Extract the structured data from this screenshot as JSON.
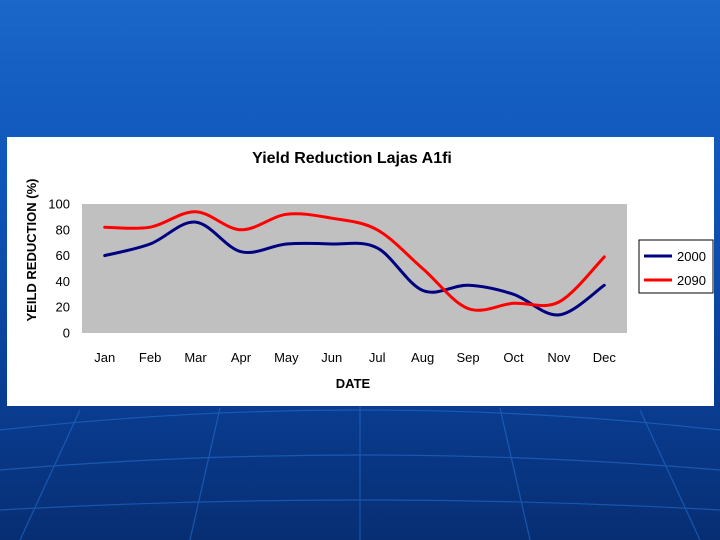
{
  "colors": {
    "background": "#1259bf",
    "plot_area": "#c0c0c0",
    "series_2000": "#000080",
    "series_2090": "#ff0000"
  },
  "chart_data": {
    "type": "line",
    "title": "Yield Reduction Lajas A1fi",
    "xlabel": "DATE",
    "ylabel": "YEILD REDUCTION (%)",
    "categories": [
      "Jan",
      "Feb",
      "Mar",
      "Apr",
      "May",
      "Jun",
      "Jul",
      "Aug",
      "Sep",
      "Oct",
      "Nov",
      "Dec"
    ],
    "series": [
      {
        "name": "2000",
        "color": "#000080",
        "values": [
          60,
          69,
          86,
          63,
          69,
          69,
          66,
          33,
          37,
          30,
          14,
          37
        ]
      },
      {
        "name": "2090",
        "color": "#ff0000",
        "values": [
          82,
          82,
          94,
          80,
          92,
          89,
          80,
          50,
          19,
          23,
          24,
          59
        ]
      }
    ],
    "ylim": [
      0,
      100
    ],
    "yticks": [
      0,
      20,
      40,
      60,
      80,
      100
    ],
    "smooth": true,
    "grid": false,
    "legend_position": "right"
  }
}
